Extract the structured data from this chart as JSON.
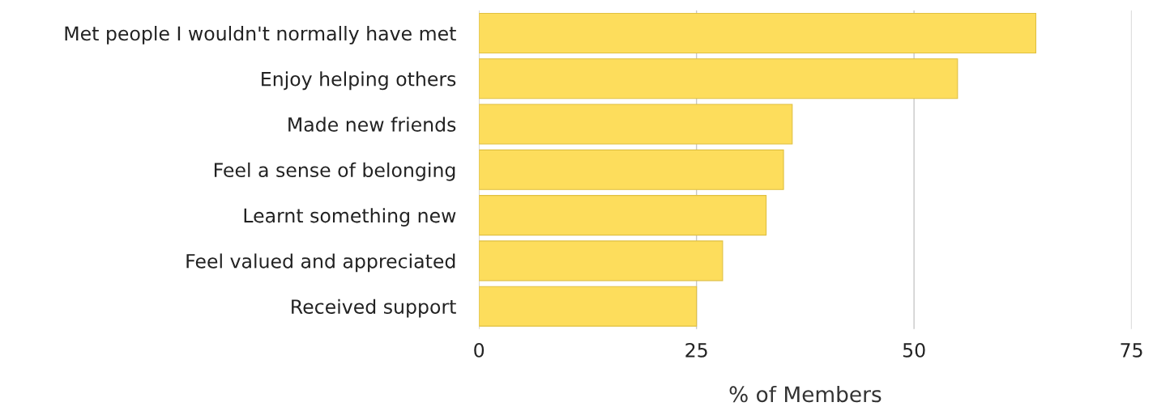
{
  "chart_data": {
    "type": "bar",
    "orientation": "horizontal",
    "xlabel": "% of Members",
    "categories": [
      "Met people I wouldn't normally have met",
      "Enjoy helping others",
      "Made new friends",
      "Feel a sense of belonging",
      "Learnt something new",
      "Feel valued and appreciated",
      "Received support"
    ],
    "values": [
      64,
      55,
      36,
      35,
      33,
      28,
      25
    ],
    "color": "#fddd5c",
    "xlim": [
      0,
      75
    ],
    "xticks": [
      0,
      25,
      50,
      75
    ],
    "grid": "x",
    "legend": false
  }
}
